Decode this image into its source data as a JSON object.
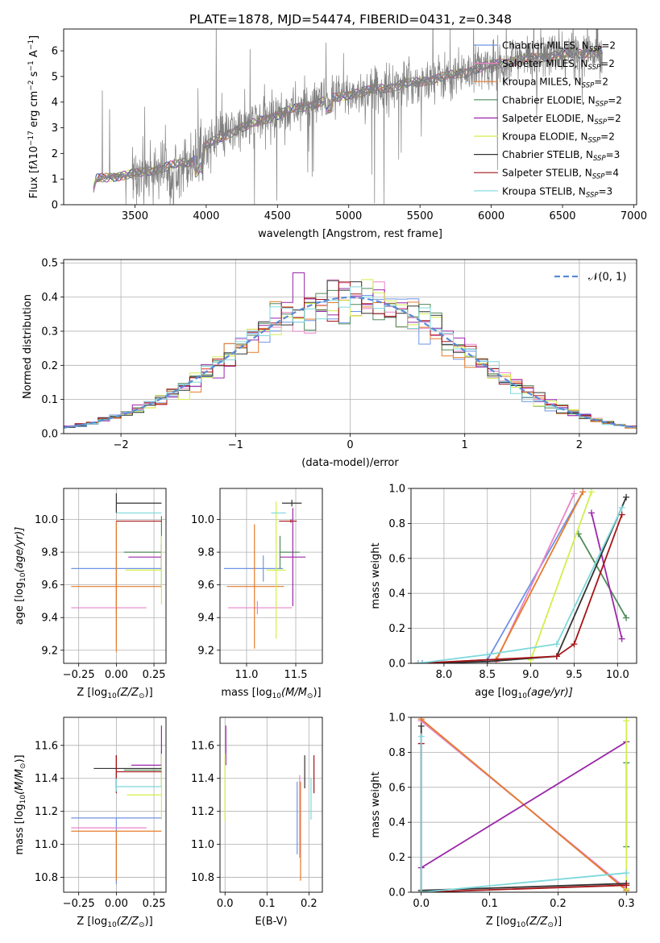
{
  "figure_title": "PLATE=1878, MJD=54474, FIBERID=0431, z=0.348",
  "colors": {
    "chab_miles": "#6f93e6",
    "salp_miles": "#e884c9",
    "krou_miles": "#e77b2a",
    "chab_elodie": "#4f8a5a",
    "salp_elodie": "#9a27a8",
    "krou_elodie": "#d2ef4e",
    "chab_stelib": "#333333",
    "salp_stelib": "#a51518",
    "krou_stelib": "#7dd8dd",
    "data": "#808080",
    "normal": "#5b8bd6",
    "grid": "#b0b0b0"
  },
  "chart_data": [
    {
      "id": "spectrum",
      "type": "line",
      "title": "PLATE=1878, MJD=54474, FIBERID=0431, z=0.348",
      "xlabel": "wavelength [Angstrom, rest frame]",
      "ylabel_parts": [
        "Flux [f",
        "λ",
        "10",
        "−17",
        " erg cm",
        "−2",
        " s",
        "−1",
        " A",
        "−1",
        "]"
      ],
      "xlim": [
        3000,
        7020
      ],
      "ylim": [
        0,
        6.85
      ],
      "xticks": [
        3500,
        4000,
        4500,
        5000,
        5500,
        6000,
        6500,
        7000
      ],
      "yticks": [
        0,
        1,
        2,
        3,
        4,
        5,
        6
      ],
      "grid": false,
      "legend_position": "top-right",
      "x_range": [
        3210,
        6780
      ],
      "continuum": [
        [
          3210,
          0.6
        ],
        [
          3230,
          1.0
        ],
        [
          3350,
          1.1
        ],
        [
          3500,
          1.2
        ],
        [
          3700,
          1.45
        ],
        [
          3900,
          1.7
        ],
        [
          4000,
          2.3
        ],
        [
          4200,
          2.9
        ],
        [
          4400,
          3.3
        ],
        [
          4600,
          3.7
        ],
        [
          4800,
          4.0
        ],
        [
          5000,
          4.3
        ],
        [
          5200,
          4.5
        ],
        [
          5400,
          4.7
        ],
        [
          5600,
          4.9
        ],
        [
          5800,
          5.15
        ],
        [
          6000,
          5.45
        ],
        [
          6200,
          5.65
        ],
        [
          6400,
          5.8
        ],
        [
          6600,
          5.9
        ],
        [
          6780,
          5.95
        ]
      ],
      "series": [
        {
          "name": "Chabrier MILES, N",
          "sub": "SSP",
          "suffix": "=2",
          "color_key": "chab_miles"
        },
        {
          "name": "Salpeter MILES, N",
          "sub": "SSP",
          "suffix": "=2",
          "color_key": "salp_miles"
        },
        {
          "name": "Kroupa MILES, N",
          "sub": "SSP",
          "suffix": "=2",
          "color_key": "krou_miles"
        },
        {
          "name": "Chabrier ELODIE, N",
          "sub": "SSP",
          "suffix": "=2",
          "color_key": "chab_elodie"
        },
        {
          "name": "Salpeter ELODIE, N",
          "sub": "SSP",
          "suffix": "=2",
          "color_key": "salp_elodie"
        },
        {
          "name": "Kroupa ELODIE, N",
          "sub": "SSP",
          "suffix": "=2",
          "color_key": "krou_elodie"
        },
        {
          "name": "Chabrier STELIB, N",
          "sub": "SSP",
          "suffix": "=3",
          "color_key": "chab_stelib"
        },
        {
          "name": "Salpeter STELIB, N",
          "sub": "SSP",
          "suffix": "=4",
          "color_key": "salp_stelib"
        },
        {
          "name": "Kroupa STELIB, N",
          "sub": "SSP",
          "suffix": "=3",
          "color_key": "krou_stelib"
        }
      ]
    },
    {
      "id": "residuals",
      "type": "histogram",
      "xlabel": "(data-model)/error",
      "ylabel": "Normed distribution",
      "xlim": [
        -2.5,
        2.5
      ],
      "ylim": [
        0,
        0.51
      ],
      "xticks": [
        -2,
        -1,
        0,
        1,
        2
      ],
      "yticks": [
        0.0,
        0.1,
        0.2,
        0.3,
        0.4,
        0.5
      ],
      "grid": true,
      "legend_position": "top-right",
      "legend_label": "𝒩(0, 1)",
      "bin_width": 0.1
    },
    {
      "id": "z_age",
      "type": "errorbar",
      "xlabel_parts": [
        "Z [log",
        "10",
        "(Z/Z",
        "⊙",
        ")]"
      ],
      "ylabel_parts": [
        "age  [log",
        "10",
        "(age/yr)]"
      ],
      "xlim": [
        -0.35,
        0.33
      ],
      "ylim": [
        9.12,
        10.19
      ],
      "xticks": [
        -0.25,
        0.0,
        0.25
      ],
      "ytick_labels": [
        "−0.25",
        "0.00",
        "0.25"
      ],
      "yticks": [
        9.2,
        9.4,
        9.6,
        9.8,
        10.0
      ],
      "grid": true,
      "points": [
        {
          "color_key": "chab_miles",
          "x": 0.0,
          "xerr": [
            0.3,
            0.3
          ],
          "y": 9.7,
          "yerr": [
            0.28,
            0.28
          ]
        },
        {
          "color_key": "salp_miles",
          "x": 0.0,
          "xerr": [
            0.3,
            0.2
          ],
          "y": 9.46,
          "yerr": [
            0.22,
            0.22
          ]
        },
        {
          "color_key": "krou_miles",
          "x": 0.0,
          "xerr": [
            0.3,
            0.3
          ],
          "y": 9.59,
          "yerr": [
            0.4,
            0.4
          ]
        },
        {
          "color_key": "chab_elodie",
          "x": 0.3,
          "xerr": [
            0.25,
            0.0
          ],
          "y": 9.8,
          "yerr": [
            0.22,
            0.22
          ]
        },
        {
          "color_key": "salp_elodie",
          "x": 0.3,
          "xerr": [
            0.22,
            0.0
          ],
          "y": 9.77,
          "yerr": [
            0.08,
            0.08
          ]
        },
        {
          "color_key": "krou_elodie",
          "x": 0.3,
          "xerr": [
            0.24,
            0.0
          ],
          "y": 9.69,
          "yerr": [
            0.21,
            0.21
          ]
        },
        {
          "color_key": "chab_stelib",
          "x": 0.0,
          "xerr": [
            0.0,
            0.3
          ],
          "y": 10.1,
          "yerr": [
            0.06,
            0.06
          ]
        },
        {
          "color_key": "salp_stelib",
          "x": 0.0,
          "xerr": [
            0.0,
            0.3
          ],
          "y": 9.99,
          "yerr": [
            0.0,
            0.0
          ]
        },
        {
          "color_key": "krou_stelib",
          "x": 0.0,
          "xerr": [
            0.0,
            0.3
          ],
          "y": 10.04,
          "yerr": [
            0.0,
            0.0
          ]
        }
      ]
    },
    {
      "id": "mass_age",
      "type": "errorbar",
      "xlabel_parts": [
        "mass [log",
        "10",
        "(M/M",
        "⊙",
        ")]"
      ],
      "xlim": [
        10.73,
        11.77
      ],
      "ylim": [
        9.12,
        10.19
      ],
      "xticks": [
        11.0,
        11.5
      ],
      "yticks": [
        9.2,
        9.4,
        9.6,
        9.8,
        10.0
      ],
      "grid": true,
      "points": [
        {
          "color_key": "chab_miles",
          "x": 11.17,
          "xerr": [
            0.4,
            0.2
          ],
          "y": 9.7,
          "yerr": [
            0.08,
            0.08
          ]
        },
        {
          "color_key": "salp_miles",
          "x": 11.11,
          "xerr": [
            0.3,
            0.35
          ],
          "y": 9.46,
          "yerr": [
            0.04,
            0.04
          ]
        },
        {
          "color_key": "krou_miles",
          "x": 11.08,
          "xerr": [
            0.28,
            0.3
          ],
          "y": 9.59,
          "yerr": [
            0.38,
            0.38
          ]
        },
        {
          "color_key": "chab_elodie",
          "x": 11.34,
          "xerr": [
            0.0,
            0.2
          ],
          "y": 9.8,
          "yerr": [
            0.1,
            0.1
          ]
        },
        {
          "color_key": "salp_elodie",
          "x": 11.47,
          "xerr": [
            0.13,
            0.13
          ],
          "y": 9.77,
          "yerr": [
            0.3,
            0.3
          ]
        },
        {
          "color_key": "krou_elodie",
          "x": 11.3,
          "xerr": [
            0.1,
            0.1
          ],
          "y": 9.69,
          "yerr": [
            0.42,
            0.42
          ]
        },
        {
          "color_key": "chab_stelib",
          "x": 11.46,
          "xerr": [
            0.1,
            0.1
          ],
          "y": 10.1,
          "yerr": [
            0.02,
            0.02
          ]
        },
        {
          "color_key": "salp_stelib",
          "x": 11.45,
          "xerr": [
            0.12,
            0.06
          ],
          "y": 9.99,
          "yerr": [
            0.01,
            0.01
          ]
        },
        {
          "color_key": "krou_stelib",
          "x": 11.35,
          "xerr": [
            0.1,
            0.05
          ],
          "y": 10.04,
          "yerr": [
            0.0,
            0.0
          ]
        }
      ]
    },
    {
      "id": "age_weight",
      "type": "line",
      "xlabel_parts": [
        "age  [log",
        "10",
        "(age/yr)]"
      ],
      "ylabel": "mass weight",
      "xlim": [
        7.62,
        10.22
      ],
      "ylim": [
        0,
        1.0
      ],
      "xticks": [
        8.0,
        8.5,
        9.0,
        9.5,
        10.0
      ],
      "yticks": [
        0.0,
        0.2,
        0.4,
        0.6,
        0.8,
        1.0
      ],
      "grid": true,
      "series": [
        {
          "color_key": "chab_miles",
          "points": [
            [
              7.75,
              0.0
            ],
            [
              8.5,
              0.02
            ],
            [
              9.6,
              0.98
            ]
          ]
        },
        {
          "color_key": "salp_miles",
          "points": [
            [
              8.6,
              0.01
            ],
            [
              9.5,
              0.97
            ]
          ]
        },
        {
          "color_key": "krou_miles",
          "points": [
            [
              8.6,
              0.02
            ],
            [
              9.6,
              0.98
            ]
          ]
        },
        {
          "color_key": "chab_elodie",
          "points": [
            [
              10.1,
              0.26
            ],
            [
              9.55,
              0.74
            ]
          ]
        },
        {
          "color_key": "salp_elodie",
          "points": [
            [
              10.05,
              0.14
            ],
            [
              9.7,
              0.86
            ]
          ]
        },
        {
          "color_key": "krou_elodie",
          "points": [
            [
              9.0,
              0.02
            ],
            [
              9.7,
              0.98
            ]
          ]
        },
        {
          "color_key": "chab_stelib",
          "points": [
            [
              7.7,
              0.0
            ],
            [
              8.5,
              0.01
            ],
            [
              9.3,
              0.04
            ],
            [
              10.1,
              0.95
            ]
          ]
        },
        {
          "color_key": "salp_stelib",
          "points": [
            [
              7.7,
              0.0
            ],
            [
              9.3,
              0.04
            ],
            [
              9.5,
              0.11
            ],
            [
              10.05,
              0.85
            ]
          ]
        },
        {
          "color_key": "krou_stelib",
          "points": [
            [
              7.7,
              0.0
            ],
            [
              8.5,
              0.05
            ],
            [
              9.3,
              0.11
            ],
            [
              10.05,
              0.89
            ]
          ]
        }
      ]
    },
    {
      "id": "z_mass",
      "type": "errorbar",
      "xlabel_parts": [
        "Z [log",
        "10",
        "(Z/Z",
        "⊙",
        ")]"
      ],
      "ylabel_parts": [
        "mass [log",
        "10",
        "(M/M",
        "⊙",
        ")]"
      ],
      "xlim": [
        -0.35,
        0.33
      ],
      "ylim": [
        10.71,
        11.77
      ],
      "xticks": [
        -0.25,
        0.0,
        0.25
      ],
      "ytick_labels": [
        "−0.25",
        "0.00",
        "0.25"
      ],
      "yticks": [
        10.8,
        11.0,
        11.2,
        11.4,
        11.6
      ],
      "grid": true,
      "points": [
        {
          "color_key": "chab_miles",
          "x": 0.0,
          "xerr": [
            0.3,
            0.3
          ],
          "y": 11.16,
          "yerr": [
            0.4,
            0.0
          ]
        },
        {
          "color_key": "salp_miles",
          "x": 0.0,
          "xerr": [
            0.3,
            0.2
          ],
          "y": 11.1,
          "yerr": [
            0.0,
            0.0
          ]
        },
        {
          "color_key": "krou_miles",
          "x": 0.0,
          "xerr": [
            0.3,
            0.3
          ],
          "y": 11.08,
          "yerr": [
            0.3,
            0.0
          ]
        },
        {
          "color_key": "chab_elodie",
          "x": 0.3,
          "xerr": [
            0.25,
            0.0
          ],
          "y": 11.45,
          "yerr": [
            0.1,
            0.12
          ]
        },
        {
          "color_key": "salp_elodie",
          "x": 0.3,
          "xerr": [
            0.2,
            0.0
          ],
          "y": 11.48,
          "yerr": [
            0.0,
            0.24
          ]
        },
        {
          "color_key": "krou_elodie",
          "x": 0.3,
          "xerr": [
            0.23,
            0.0
          ],
          "y": 11.3,
          "yerr": [
            0.15,
            0.25
          ]
        },
        {
          "color_key": "chab_stelib",
          "x": 0.0,
          "xerr": [
            0.15,
            0.3
          ],
          "y": 11.46,
          "yerr": [
            0.12,
            0.08
          ]
        },
        {
          "color_key": "salp_stelib",
          "x": 0.0,
          "xerr": [
            0.0,
            0.3
          ],
          "y": 11.44,
          "yerr": [
            0.13,
            0.1
          ]
        },
        {
          "color_key": "krou_stelib",
          "x": 0.0,
          "xerr": [
            0.0,
            0.3
          ],
          "y": 11.35,
          "yerr": [
            0.03,
            0.05
          ]
        }
      ]
    },
    {
      "id": "ebv_mass",
      "type": "errorbar",
      "xlabel": "E(B-V)",
      "xlim": [
        -0.012,
        0.232
      ],
      "ylim": [
        10.71,
        11.77
      ],
      "xticks": [
        0.0,
        0.1,
        0.2
      ],
      "yticks": [
        10.8,
        11.0,
        11.2,
        11.4,
        11.6
      ],
      "grid": true,
      "points": [
        {
          "color_key": "chab_miles",
          "x": 0.172,
          "y": 11.16,
          "yerr": [
            0.22,
            0.22
          ]
        },
        {
          "color_key": "salp_miles",
          "x": 0.178,
          "y": 11.1,
          "yerr": [
            0.18,
            0.32
          ]
        },
        {
          "color_key": "krou_miles",
          "x": 0.18,
          "y": 11.08,
          "yerr": [
            0.3,
            0.3
          ]
        },
        {
          "color_key": "salp_elodie",
          "x": 0.002,
          "y": 11.48,
          "yerr": [
            0.0,
            0.24
          ]
        },
        {
          "color_key": "krou_elodie",
          "x": 0.0,
          "y": 11.3,
          "yerr": [
            0.16,
            0.25
          ]
        },
        {
          "color_key": "chab_stelib",
          "x": 0.19,
          "y": 11.46,
          "yerr": [
            0.12,
            0.08
          ]
        },
        {
          "color_key": "salp_stelib",
          "x": 0.212,
          "y": 11.44,
          "yerr": [
            0.13,
            0.1
          ]
        },
        {
          "color_key": "krou_stelib",
          "x": 0.205,
          "y": 11.35,
          "yerr": [
            0.2,
            0.05
          ]
        }
      ]
    },
    {
      "id": "z_weight",
      "type": "line",
      "xlabel_parts": [
        "Z [log",
        "10",
        "(Z/Z",
        "⊙",
        ")]"
      ],
      "ylabel": "mass weight",
      "xlim": [
        -0.015,
        0.315
      ],
      "ylim": [
        0,
        1.0
      ],
      "xticks": [
        0.0,
        0.1,
        0.2,
        0.3
      ],
      "yticks": [
        0.0,
        0.2,
        0.4,
        0.6,
        0.8,
        1.0
      ],
      "grid": true,
      "series": [
        {
          "color_key": "chab_miles",
          "points": [
            [
              0.0,
              0.98
            ],
            [
              0.3,
              0.02
            ]
          ]
        },
        {
          "color_key": "salp_miles",
          "points": [
            [
              0.0,
              0.98
            ],
            [
              0.3,
              0.02
            ]
          ]
        },
        {
          "color_key": "krou_miles",
          "points": [
            [
              0.0,
              0.99
            ],
            [
              0.3,
              0.01
            ]
          ]
        },
        {
          "color_key": "chab_elodie",
          "points": [
            [
              0.3,
              0.26
            ],
            [
              0.3,
              0.74
            ]
          ]
        },
        {
          "color_key": "salp_elodie",
          "points": [
            [
              0.0,
              0.14
            ],
            [
              0.3,
              0.86
            ]
          ]
        },
        {
          "color_key": "krou_elodie",
          "points": [
            [
              0.3,
              0.02
            ],
            [
              0.3,
              0.98
            ]
          ]
        },
        {
          "color_key": "chab_stelib",
          "points": [
            [
              0.0,
              0.95
            ],
            [
              0.0,
              0.01
            ],
            [
              0.3,
              0.05
            ]
          ]
        },
        {
          "color_key": "salp_stelib",
          "points": [
            [
              0.0,
              0.85
            ],
            [
              0.0,
              0.0
            ],
            [
              0.3,
              0.04
            ]
          ]
        },
        {
          "color_key": "krou_stelib",
          "points": [
            [
              0.0,
              0.89
            ],
            [
              0.0,
              0.0
            ],
            [
              0.3,
              0.11
            ]
          ]
        }
      ]
    }
  ]
}
